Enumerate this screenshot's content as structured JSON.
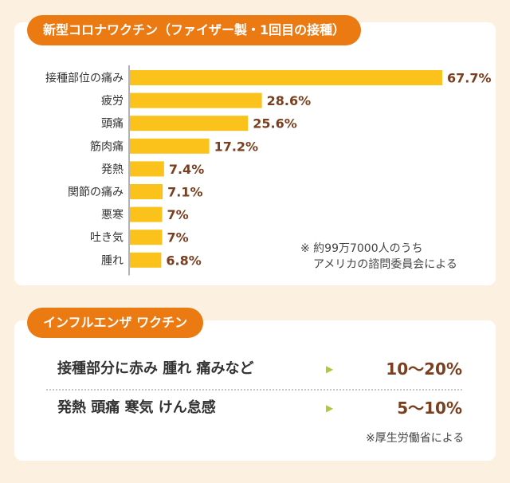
{
  "covid": {
    "title": "新型コロナワクチン（ファイザー製・1回目の接種）",
    "note_line1": "※ 約99万7000人のうち",
    "note_line2": "アメリカの諮問委員会による"
  },
  "flu": {
    "title": "インフルエンザ ワクチン",
    "rows": [
      {
        "label": "接種部分に赤み 腫れ 痛みなど",
        "arrow": "▶",
        "value": "10〜20%"
      },
      {
        "label": "発熱 頭痛 寒気 けん怠感",
        "arrow": "▶",
        "value": "5〜10%"
      }
    ],
    "note": "※厚生労働省による"
  },
  "colors": {
    "bar": "#fbc21b",
    "accent": "#ec7a13",
    "value_text": "#7a3f1e",
    "background": "#fcf1e1"
  },
  "chart_data": {
    "type": "bar",
    "orientation": "horizontal",
    "title": "新型コロナワクチン（ファイザー製・1回目の接種）",
    "categories": [
      "接種部位の痛み",
      "疲労",
      "頭痛",
      "筋肉痛",
      "発熱",
      "関節の痛み",
      "悪寒",
      "吐き気",
      "腫れ"
    ],
    "values": [
      67.7,
      28.6,
      25.6,
      17.2,
      7.4,
      7.1,
      7,
      7,
      6.8
    ],
    "value_labels": [
      "67.7%",
      "28.6%",
      "25.6%",
      "17.2%",
      "7.4%",
      "7.1%",
      "7%",
      "7%",
      "6.8%"
    ],
    "unit": "%",
    "xlim": [
      0,
      67.7
    ],
    "grid": false,
    "legend": "none"
  }
}
